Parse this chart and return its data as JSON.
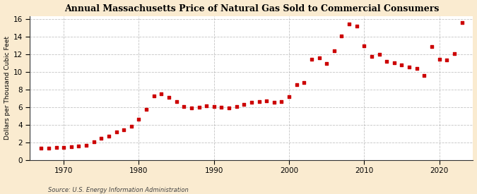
{
  "title": "Annual Massachusetts Price of Natural Gas Sold to Commercial Consumers",
  "ylabel": "Dollars per Thousand Cubic Feet",
  "source": "Source: U.S. Energy Information Administration",
  "fig_bg_color": "#faebd0",
  "plot_bg_color": "#ffffff",
  "marker_color": "#cc0000",
  "grid_color": "#aaaaaa",
  "xlim": [
    1965.5,
    2024.5
  ],
  "ylim": [
    0,
    16.4
  ],
  "yticks": [
    0,
    2,
    4,
    6,
    8,
    10,
    12,
    14,
    16
  ],
  "xticks": [
    1970,
    1980,
    1990,
    2000,
    2010,
    2020
  ],
  "data": {
    "1967": 1.35,
    "1968": 1.38,
    "1969": 1.42,
    "1970": 1.48,
    "1971": 1.55,
    "1972": 1.62,
    "1973": 1.72,
    "1974": 2.1,
    "1975": 2.45,
    "1976": 2.75,
    "1977": 3.2,
    "1978": 3.45,
    "1979": 3.85,
    "1980": 4.65,
    "1981": 5.75,
    "1982": 7.3,
    "1983": 7.55,
    "1984": 7.15,
    "1985": 6.65,
    "1986": 6.1,
    "1987": 5.95,
    "1988": 6.05,
    "1989": 6.2,
    "1990": 6.1,
    "1991": 6.05,
    "1992": 5.95,
    "1993": 6.1,
    "1994": 6.35,
    "1995": 6.55,
    "1996": 6.65,
    "1997": 6.7,
    "1998": 6.55,
    "1999": 6.65,
    "2000": 7.25,
    "2001": 8.55,
    "2002": 8.8,
    "2003": 11.45,
    "2004": 11.6,
    "2005": 10.95,
    "2006": 12.4,
    "2007": 14.15,
    "2008": 15.5,
    "2009": 15.2,
    "2010": 13.0,
    "2011": 11.8,
    "2012": 12.05,
    "2013": 11.2,
    "2014": 11.1,
    "2015": 10.8,
    "2016": 10.55,
    "2017": 10.45,
    "2018": 9.6,
    "2019": 12.9,
    "2020": 11.45,
    "2021": 11.35,
    "2022": 12.1,
    "2023": 15.6
  }
}
